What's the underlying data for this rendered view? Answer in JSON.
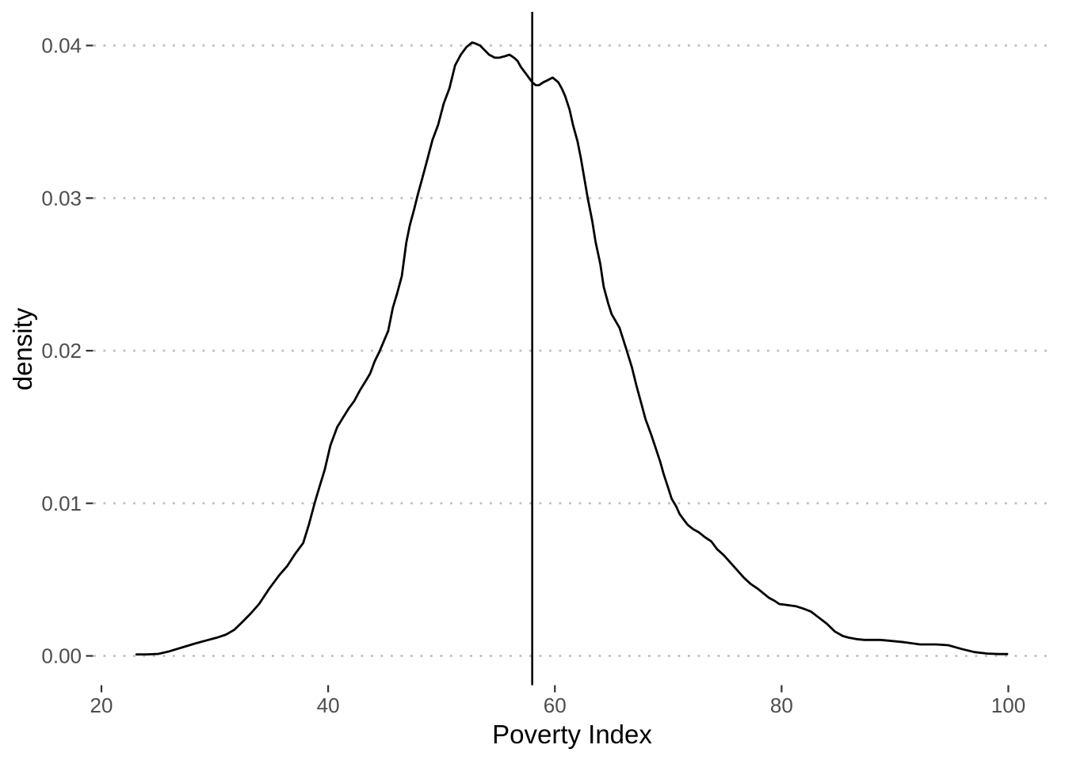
{
  "figure": {
    "background": "#ffffff",
    "panel_background": "#ffffff"
  },
  "style": {
    "curve_color": "#000000",
    "vline_color": "#000000",
    "grid_color": "#bfbfbf",
    "tick_color": "#333333",
    "tick_label_color": "#4d4d4d",
    "axis_title_color": "#000000"
  },
  "chart_data": {
    "type": "line",
    "subtype": "kernel-density",
    "title": "",
    "xlabel": "Poverty Index",
    "ylabel": "density",
    "legend": "none",
    "grid": {
      "horizontal_major": "dotted",
      "vertical": "none"
    },
    "x_axis": {
      "ticks": [
        20,
        40,
        60,
        80,
        100
      ],
      "tick_labels": [
        "20",
        "40",
        "60",
        "80",
        "100"
      ],
      "range": [
        19.3,
        103.6
      ]
    },
    "y_axis": {
      "ticks": [
        0,
        0.01,
        0.02,
        0.03,
        0.04
      ],
      "tick_labels": [
        "0.00",
        "0.01",
        "0.02",
        "0.03",
        "0.04"
      ],
      "range": [
        -0.0019,
        0.0422
      ]
    },
    "reference_lines": [
      {
        "orientation": "vertical",
        "x": 58,
        "color": "#000000"
      }
    ],
    "series": [
      {
        "name": "poverty-index-density",
        "color": "#000000",
        "points": [
          [
            23.1,
            0.0001
          ],
          [
            24.0,
            0.0001
          ],
          [
            25.0,
            0.00013
          ],
          [
            26.0,
            0.0003
          ],
          [
            27.1,
            0.00055
          ],
          [
            28.2,
            0.0008
          ],
          [
            29.2,
            0.001
          ],
          [
            30.2,
            0.0012
          ],
          [
            31.0,
            0.0014
          ],
          [
            31.7,
            0.0017
          ],
          [
            32.4,
            0.0022
          ],
          [
            33.2,
            0.0028
          ],
          [
            33.9,
            0.0034
          ],
          [
            34.8,
            0.0044
          ],
          [
            35.7,
            0.0053
          ],
          [
            36.4,
            0.0059
          ],
          [
            37.1,
            0.0067
          ],
          [
            37.8,
            0.0074
          ],
          [
            38.3,
            0.0086
          ],
          [
            38.8,
            0.01
          ],
          [
            39.2,
            0.011
          ],
          [
            39.7,
            0.0122
          ],
          [
            40.2,
            0.0138
          ],
          [
            40.8,
            0.015
          ],
          [
            41.3,
            0.0156
          ],
          [
            41.8,
            0.0162
          ],
          [
            42.3,
            0.0167
          ],
          [
            42.8,
            0.0174
          ],
          [
            43.3,
            0.018
          ],
          [
            43.7,
            0.0185
          ],
          [
            44.1,
            0.0193
          ],
          [
            44.5,
            0.0199
          ],
          [
            44.9,
            0.0206
          ],
          [
            45.3,
            0.0213
          ],
          [
            45.7,
            0.0228
          ],
          [
            46.1,
            0.0238
          ],
          [
            46.5,
            0.0249
          ],
          [
            46.9,
            0.0271
          ],
          [
            47.2,
            0.0282
          ],
          [
            47.6,
            0.0293
          ],
          [
            47.9,
            0.0302
          ],
          [
            48.3,
            0.0313
          ],
          [
            48.7,
            0.0324
          ],
          [
            49.2,
            0.0338
          ],
          [
            49.7,
            0.0348
          ],
          [
            50.2,
            0.0362
          ],
          [
            50.7,
            0.0372
          ],
          [
            51.2,
            0.0387
          ],
          [
            51.7,
            0.0394
          ],
          [
            52.2,
            0.0399
          ],
          [
            52.7,
            0.0402
          ],
          [
            53.1,
            0.0401
          ],
          [
            53.4,
            0.04
          ],
          [
            53.8,
            0.0397
          ],
          [
            54.2,
            0.0394
          ],
          [
            54.7,
            0.0392
          ],
          [
            55.1,
            0.0392
          ],
          [
            55.6,
            0.0393
          ],
          [
            56.0,
            0.0394
          ],
          [
            56.4,
            0.0392
          ],
          [
            56.7,
            0.039
          ],
          [
            57.0,
            0.0386
          ],
          [
            57.3,
            0.0383
          ],
          [
            57.7,
            0.0379
          ],
          [
            58.0,
            0.0376
          ],
          [
            58.3,
            0.0374
          ],
          [
            58.6,
            0.0374
          ],
          [
            59.0,
            0.0376
          ],
          [
            59.3,
            0.0377
          ],
          [
            59.8,
            0.0379
          ],
          [
            60.3,
            0.0376
          ],
          [
            60.6,
            0.0372
          ],
          [
            60.9,
            0.0367
          ],
          [
            61.3,
            0.0358
          ],
          [
            61.6,
            0.0348
          ],
          [
            62.0,
            0.0337
          ],
          [
            62.3,
            0.0326
          ],
          [
            62.6,
            0.0313
          ],
          [
            62.9,
            0.03
          ],
          [
            63.3,
            0.0285
          ],
          [
            63.6,
            0.0271
          ],
          [
            64.0,
            0.0257
          ],
          [
            64.3,
            0.0242
          ],
          [
            64.7,
            0.0231
          ],
          [
            65.0,
            0.0224
          ],
          [
            65.7,
            0.0215
          ],
          [
            66.3,
            0.0201
          ],
          [
            66.8,
            0.0189
          ],
          [
            67.2,
            0.0177
          ],
          [
            67.6,
            0.0166
          ],
          [
            68.0,
            0.0155
          ],
          [
            68.5,
            0.0145
          ],
          [
            68.9,
            0.0136
          ],
          [
            69.3,
            0.0127
          ],
          [
            69.6,
            0.0119
          ],
          [
            70.0,
            0.011
          ],
          [
            70.3,
            0.0103
          ],
          [
            70.7,
            0.0098
          ],
          [
            71.0,
            0.0093
          ],
          [
            71.4,
            0.0089
          ],
          [
            71.7,
            0.0086
          ],
          [
            72.2,
            0.0083
          ],
          [
            72.7,
            0.0081
          ],
          [
            73.2,
            0.0078
          ],
          [
            73.8,
            0.0075
          ],
          [
            74.3,
            0.007
          ],
          [
            74.9,
            0.0066
          ],
          [
            75.5,
            0.0061
          ],
          [
            76.1,
            0.0056
          ],
          [
            76.7,
            0.0051
          ],
          [
            77.3,
            0.0047
          ],
          [
            77.9,
            0.0044
          ],
          [
            78.4,
            0.0041
          ],
          [
            78.9,
            0.0038
          ],
          [
            79.4,
            0.0036
          ],
          [
            79.8,
            0.0034
          ],
          [
            80.3,
            0.00335
          ],
          [
            80.8,
            0.0033
          ],
          [
            81.3,
            0.00325
          ],
          [
            81.9,
            0.0031
          ],
          [
            82.6,
            0.0029
          ],
          [
            83.3,
            0.0025
          ],
          [
            84.0,
            0.0021
          ],
          [
            84.7,
            0.0016
          ],
          [
            85.4,
            0.0013
          ],
          [
            85.9,
            0.0012
          ],
          [
            86.6,
            0.0011
          ],
          [
            87.3,
            0.00105
          ],
          [
            88.0,
            0.00105
          ],
          [
            88.7,
            0.00105
          ],
          [
            89.4,
            0.001
          ],
          [
            90.8,
            0.0009
          ],
          [
            92.2,
            0.00075
          ],
          [
            93.6,
            0.00075
          ],
          [
            94.7,
            0.0007
          ],
          [
            95.9,
            0.00045
          ],
          [
            97.0,
            0.00025
          ],
          [
            98.2,
            0.00015
          ],
          [
            99.2,
            0.00012
          ],
          [
            99.9,
            0.00012
          ]
        ]
      }
    ]
  }
}
